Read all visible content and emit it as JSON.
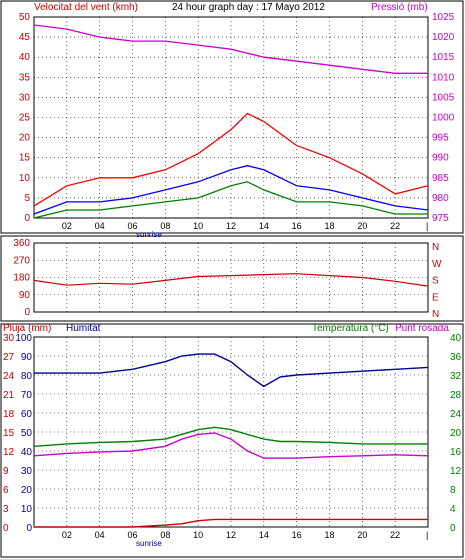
{
  "colors": {
    "panel_bg": "#ffffff",
    "border": "#000000",
    "grid": "#000000",
    "wind_avg": "#0000ff",
    "wind_gust": "#ff0000",
    "wind_low": "#008000",
    "pressure": "#cc00cc",
    "direction": "#cc0000",
    "rain": "#cc0000",
    "humidity": "#000099",
    "temperature": "#008000",
    "dewpoint": "#cc00cc"
  },
  "header": {
    "wind_label": "Velocitat del vent (kmh)",
    "title": "24 hour graph day : 17 Mayo 2012",
    "pressure_label": "Pressió (mb)"
  },
  "x_ticks": [
    "02",
    "04",
    "06",
    "08",
    "10",
    "12",
    "14",
    "16",
    "18",
    "20",
    "22"
  ],
  "sunrise_label": "sunrise",
  "chart_data": [
    {
      "type": "line",
      "name": "wind-and-pressure",
      "x": [
        0,
        2,
        4,
        6,
        8,
        10,
        12,
        13,
        14,
        16,
        18,
        20,
        22,
        24
      ],
      "yleft_label": "Velocitat del vent (kmh)",
      "yleft_ticks": [
        0,
        5,
        10,
        15,
        20,
        25,
        30,
        35,
        40,
        45,
        50
      ],
      "yleft_lim": [
        0,
        50
      ],
      "yright_label": "Pressió (mb)",
      "yright_ticks": [
        975,
        980,
        985,
        990,
        995,
        1000,
        1005,
        1010,
        1015,
        1020,
        1025
      ],
      "yright_lim": [
        975,
        1025
      ],
      "series": [
        {
          "color": "#ff0000",
          "axis": "left",
          "values": [
            3,
            8,
            10,
            10,
            12,
            16,
            22,
            26,
            24,
            18,
            15,
            11,
            6,
            8
          ]
        },
        {
          "color": "#0000ff",
          "axis": "left",
          "values": [
            1,
            4,
            4,
            5,
            7,
            9,
            12,
            13,
            12,
            8,
            7,
            5,
            3,
            2
          ]
        },
        {
          "color": "#008000",
          "axis": "left",
          "values": [
            0,
            2,
            2,
            3,
            4,
            5,
            8,
            9,
            7,
            4,
            4,
            3,
            1,
            1
          ]
        },
        {
          "color": "#cc00cc",
          "axis": "right",
          "values": [
            1023,
            1022,
            1020,
            1019,
            1019,
            1018,
            1017,
            1016,
            1015,
            1014,
            1013,
            1012,
            1011,
            1011
          ]
        }
      ]
    },
    {
      "type": "line",
      "name": "wind-direction",
      "x": [
        0,
        2,
        4,
        6,
        8,
        10,
        12,
        14,
        16,
        18,
        20,
        22,
        24
      ],
      "yleft_ticks": [
        0,
        90,
        180,
        270,
        360
      ],
      "yleft_lim": [
        0,
        360
      ],
      "right_labels": [
        "N",
        "W",
        "S",
        "E",
        "N"
      ],
      "series": [
        {
          "color": "#cc0000",
          "values": [
            165,
            140,
            150,
            145,
            165,
            185,
            190,
            195,
            200,
            190,
            180,
            160,
            135
          ]
        }
      ]
    },
    {
      "type": "line",
      "name": "rain-humidity-temperature",
      "labels": {
        "rain": "Pluja (mm)",
        "humidity": "Humitat",
        "temperature": "Temperatura (°C)",
        "dewpoint": "Punt rosada"
      },
      "x": [
        0,
        2,
        4,
        6,
        8,
        9,
        10,
        11,
        12,
        13,
        14,
        15,
        16,
        18,
        20,
        22,
        24
      ],
      "rain_ticks": [
        0,
        3,
        6,
        9,
        12,
        15,
        18,
        21,
        24,
        27,
        30
      ],
      "rain_lim": [
        0,
        30
      ],
      "humidity_ticks": [
        0,
        10,
        20,
        30,
        40,
        50,
        60,
        70,
        80,
        90,
        100
      ],
      "humidity_lim": [
        0,
        100
      ],
      "temp_ticks": [
        0,
        4,
        8,
        12,
        16,
        20,
        24,
        28,
        32,
        36,
        40
      ],
      "temp_lim": [
        0,
        40
      ],
      "series": [
        {
          "color": "#000099",
          "axis": "humidity",
          "values": [
            81,
            81,
            81,
            83,
            87,
            90,
            91,
            91,
            87,
            80,
            74,
            79,
            80,
            81,
            82,
            83,
            84
          ]
        },
        {
          "color": "#008000",
          "axis": "temperature",
          "values": [
            17,
            17.5,
            17.8,
            18,
            18.5,
            19.5,
            20.5,
            21,
            20.5,
            19.5,
            18.5,
            18,
            18,
            17.8,
            17.5,
            17.5,
            17.5
          ]
        },
        {
          "color": "#cc00cc",
          "axis": "temperature",
          "values": [
            15,
            15.5,
            15.8,
            16,
            17,
            18.5,
            19.5,
            19.8,
            18.5,
            16,
            14.5,
            14.5,
            14.5,
            14.8,
            15,
            15.2,
            15
          ]
        },
        {
          "color": "#cc0000",
          "axis": "rain",
          "values": [
            0,
            0,
            0,
            0,
            0.3,
            0.5,
            1,
            1.2,
            1.2,
            1.2,
            1.2,
            1.2,
            1.2,
            1.2,
            1.2,
            1.2,
            1.2
          ]
        }
      ]
    }
  ]
}
